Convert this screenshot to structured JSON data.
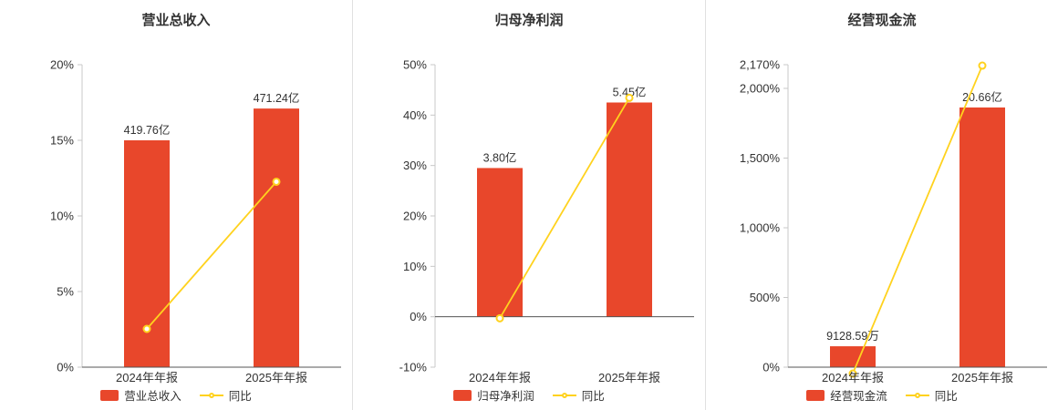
{
  "page": {
    "background": "#ffffff"
  },
  "colors": {
    "bar": "#e8472b",
    "line": "#ffd21e",
    "marker_fill": "#ffffff",
    "axis": "#555555",
    "axis_light": "#c8c8c8",
    "text": "#333333",
    "divider": "#e0e0e0"
  },
  "chart_data": [
    {
      "type": "bar",
      "title": "营业总收入",
      "categories": [
        "2024年年报",
        "2025年年报"
      ],
      "series": [
        {
          "name": "营业总收入",
          "type": "bar",
          "unit": "亿",
          "labels": [
            "419.76亿",
            "471.24亿"
          ],
          "values": [
            419.76,
            471.24
          ],
          "render_values": [
            15.0,
            17.1
          ]
        },
        {
          "name": "同比",
          "type": "line",
          "unit": "%",
          "values": [
            2.53,
            12.26
          ]
        }
      ],
      "ylim": [
        0,
        20
      ],
      "yticks": [
        0,
        5,
        10,
        15,
        20
      ],
      "ytick_labels": [
        "0%",
        "5%",
        "10%",
        "15%",
        "20%"
      ],
      "zero_line": 0,
      "grid": false,
      "legend_position": "bottom"
    },
    {
      "type": "bar",
      "title": "归母净利润",
      "categories": [
        "2024年年报",
        "2025年年报"
      ],
      "series": [
        {
          "name": "归母净利润",
          "type": "bar",
          "unit": "亿",
          "labels": [
            "3.80亿",
            "5.45亿"
          ],
          "values": [
            3.8,
            5.45
          ],
          "render_values": [
            29.5,
            42.5
          ]
        },
        {
          "name": "同比",
          "type": "line",
          "unit": "%",
          "values": [
            -0.3,
            43.42
          ]
        }
      ],
      "ylim": [
        -10,
        50
      ],
      "yticks": [
        -10,
        0,
        10,
        20,
        30,
        40,
        50
      ],
      "ytick_labels": [
        "-10%",
        "0%",
        "10%",
        "20%",
        "30%",
        "40%",
        "50%"
      ],
      "zero_line": 0,
      "grid": false,
      "legend_position": "bottom"
    },
    {
      "type": "bar",
      "title": "经营现金流",
      "categories": [
        "2024年年报",
        "2025年年报"
      ],
      "series": [
        {
          "name": "经营现金流",
          "type": "bar",
          "unit": "亿",
          "labels": [
            "9128.59万",
            "20.66亿"
          ],
          "values": [
            0.912859,
            20.66
          ],
          "render_values": [
            150,
            1863
          ]
        },
        {
          "name": "同比",
          "type": "line",
          "unit": "%",
          "values": [
            -45.8,
            2163.2
          ]
        }
      ],
      "ylim": [
        0,
        2170
      ],
      "yticks": [
        0,
        500,
        1000,
        1500,
        2000,
        2170
      ],
      "ytick_labels": [
        "0%",
        "500%",
        "1,000%",
        "1,500%",
        "2,000%",
        "2,170%"
      ],
      "zero_line": 0,
      "grid": false,
      "legend_position": "bottom"
    }
  ]
}
